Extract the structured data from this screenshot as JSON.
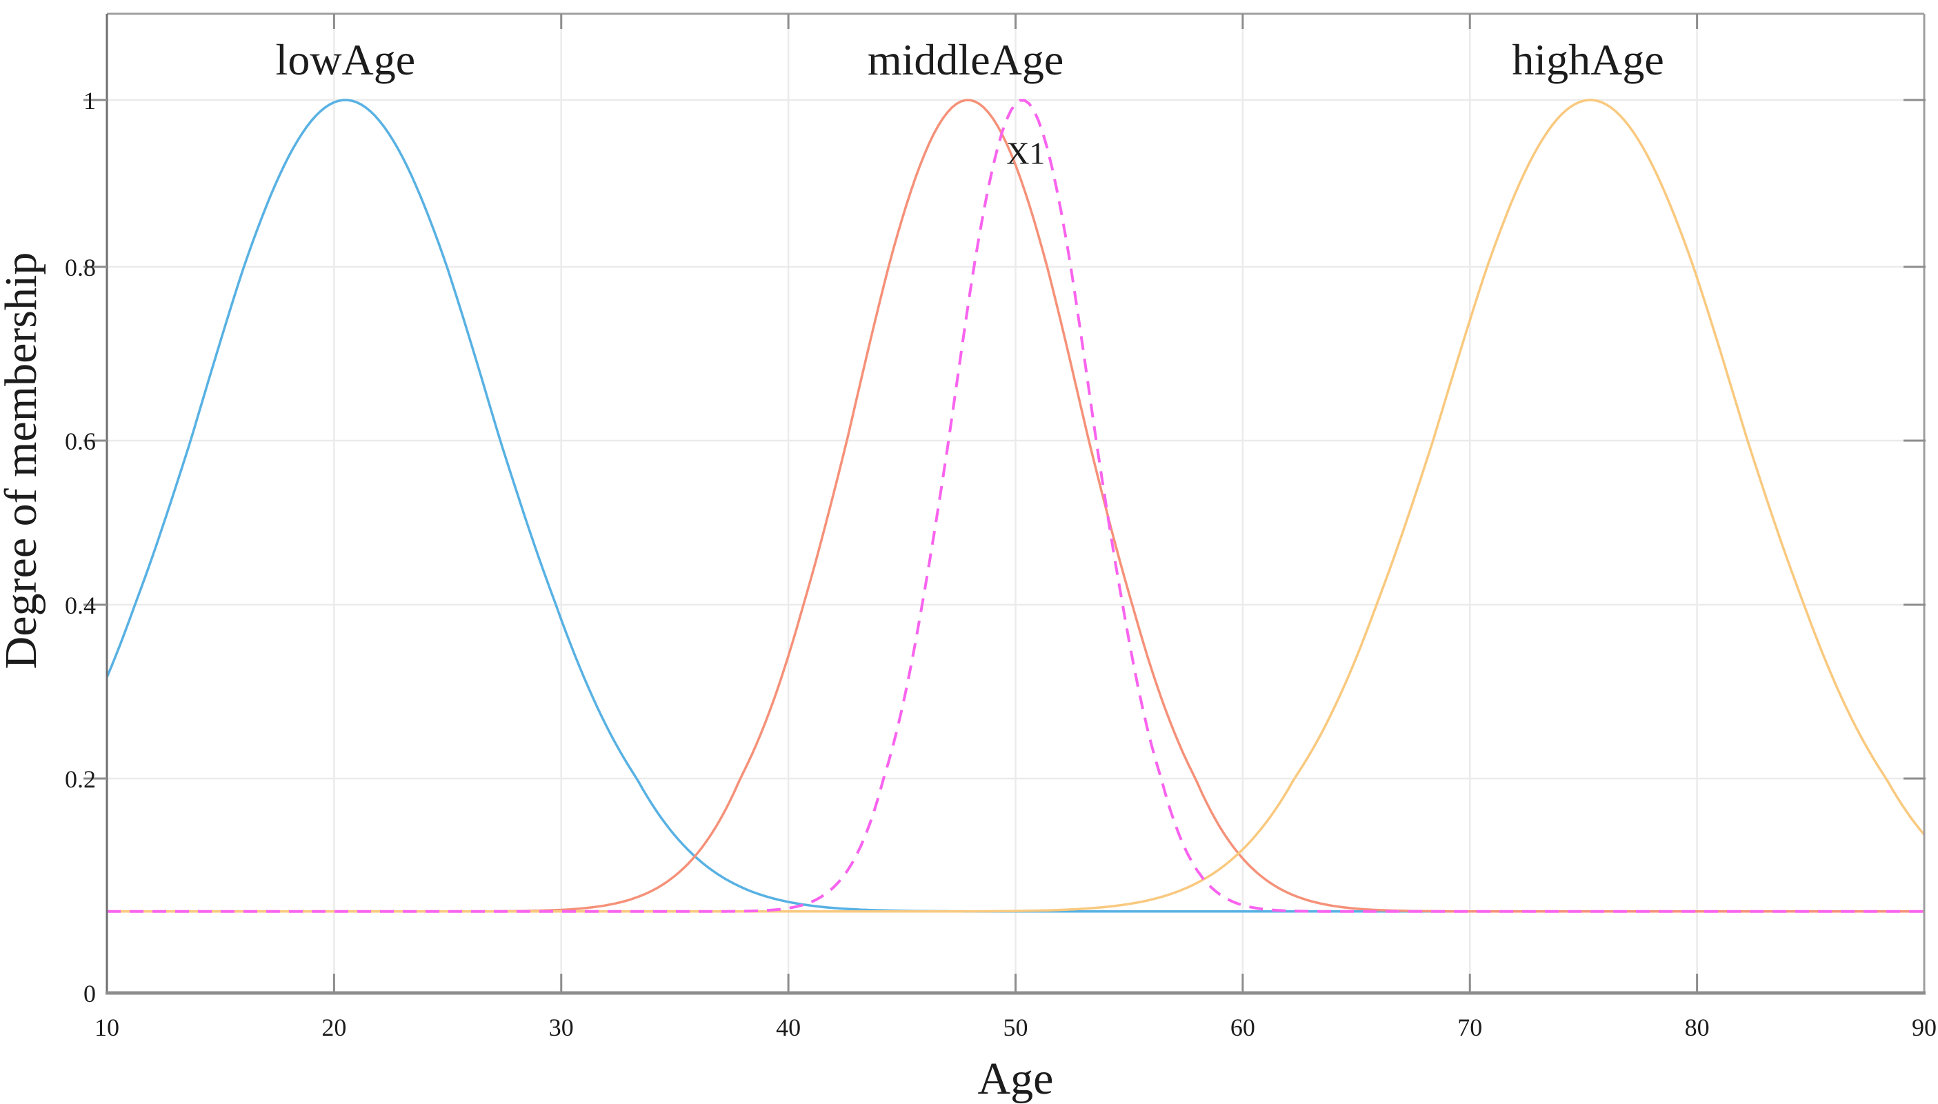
{
  "chart_data": {
    "type": "line",
    "title": "",
    "xlabel": "Age",
    "ylabel": "Degree of membership",
    "xlim": [
      10,
      90
    ],
    "ylim": [
      0,
      1.08
    ],
    "x_ticks": [
      10,
      20,
      30,
      40,
      50,
      60,
      70,
      80,
      90
    ],
    "y_ticks": [
      0,
      0.2,
      0.4,
      0.6,
      0.8,
      1
    ],
    "y_tick_labels": [
      "0",
      "0.2",
      "0.4",
      "0.6",
      "0.8",
      "1"
    ],
    "x_tick_labels": [
      "10",
      "20",
      "30",
      "40",
      "50",
      "60",
      "70",
      "80",
      "90"
    ],
    "grid": true,
    "legend_position": "none",
    "baseline_offset": 0.076,
    "series": [
      {
        "name": "lowAge",
        "shape": "gaussian-membership",
        "center": 20.5,
        "sigma": 6.4,
        "peak": 1.0,
        "color": "#58b1e3",
        "style": "solid"
      },
      {
        "name": "middleAge",
        "shape": "gaussian-membership",
        "center": 47.9,
        "sigma": 5.0,
        "peak": 1.0,
        "color": "#f59179",
        "style": "solid"
      },
      {
        "name": "highAge",
        "shape": "gaussian-membership",
        "center": 75.3,
        "sigma": 6.5,
        "peak": 1.0,
        "color": "#f9c97f",
        "style": "solid"
      },
      {
        "name": "X1",
        "shape": "gaussian-membership",
        "center": 50.3,
        "sigma": 3.05,
        "peak": 1.0,
        "color": "#f863ee",
        "style": "dashed"
      }
    ],
    "curve_labels": [
      {
        "text": "lowAge",
        "x": 20.5
      },
      {
        "text": "middleAge",
        "x": 47.8
      },
      {
        "text": "highAge",
        "x": 75.2
      }
    ],
    "annotations": [
      {
        "text": "X1",
        "x": 50.45,
        "y": 0.935
      }
    ]
  }
}
